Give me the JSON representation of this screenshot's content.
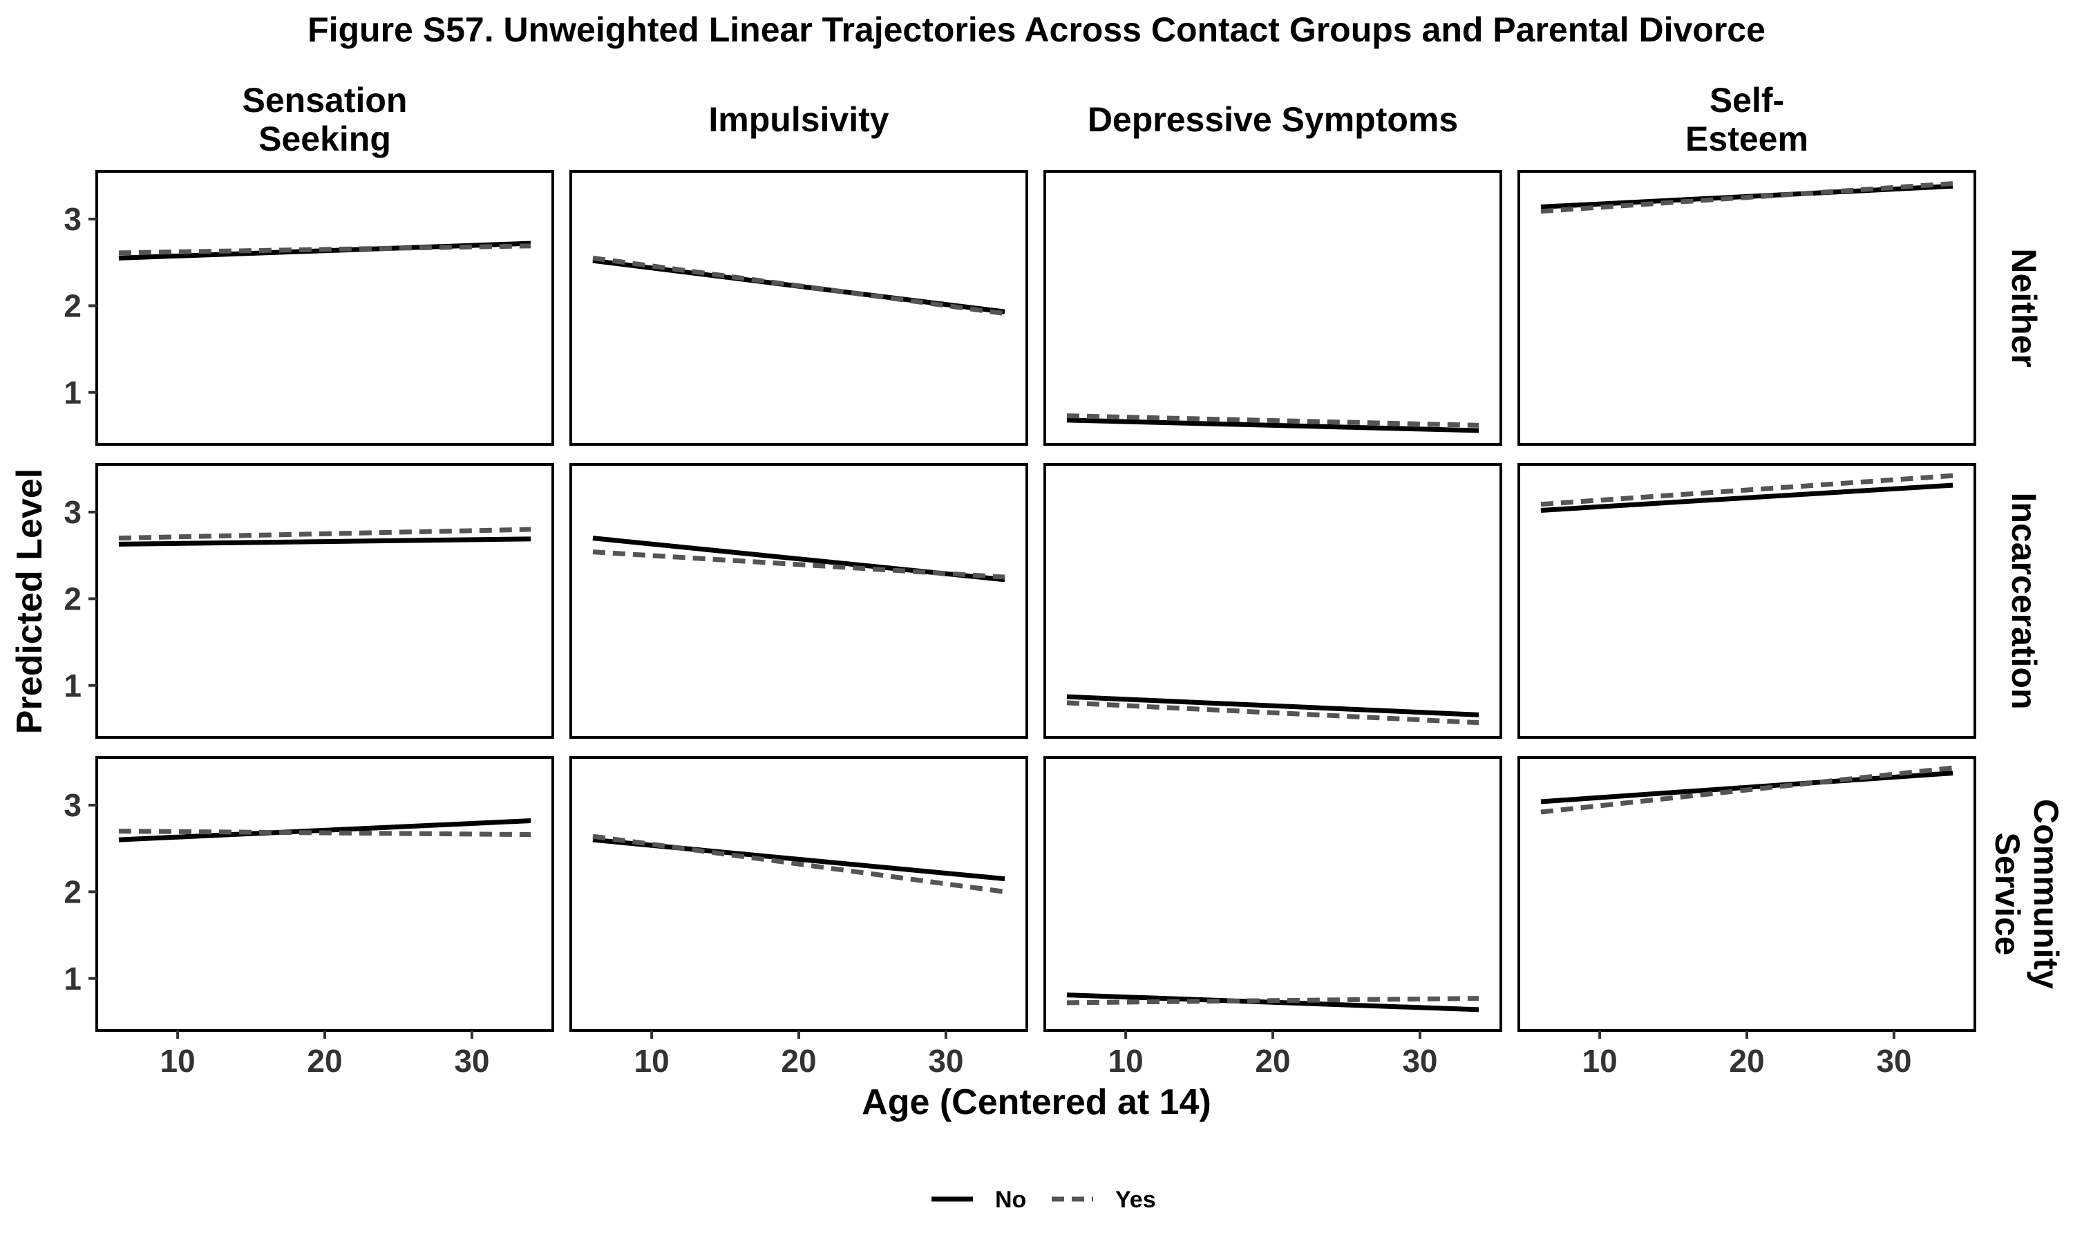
{
  "chart_data": {
    "type": "line",
    "title": "Figure S57. Unweighted Linear Trajectories Across Contact Groups and Parental Divorce",
    "xlabel": "Age (Centered at 14)",
    "ylabel": "Predicted Level",
    "xlim": [
      4.5,
      35.5
    ],
    "ylim": [
      0.4,
      3.55
    ],
    "x_ticks": [
      10,
      20,
      30
    ],
    "y_ticks": [
      1,
      2,
      3
    ],
    "x_tick_labels": [
      "10",
      "20",
      "30"
    ],
    "y_tick_labels": [
      "1",
      "2",
      "3"
    ],
    "grid": false,
    "legend": {
      "position": "bottom",
      "entries": [
        {
          "label": "No",
          "linetype": "solid",
          "color": "#000000"
        },
        {
          "label": "Yes",
          "linetype": "dashed",
          "color": "#555555"
        }
      ]
    },
    "columns": [
      {
        "key": "sensation",
        "label": "Sensation\nSeeking",
        "lines": [
          "Sensation",
          "Seeking"
        ]
      },
      {
        "key": "impulsivity",
        "label": "Impulsivity",
        "lines": [
          "Impulsivity"
        ]
      },
      {
        "key": "depressive",
        "label": "Depressive Symptoms",
        "lines": [
          "Depressive Symptoms"
        ]
      },
      {
        "key": "selfesteem",
        "label": "Self-\nEsteem",
        "lines": [
          "Self-",
          "Esteem"
        ]
      }
    ],
    "rows": [
      {
        "key": "neither",
        "label": "Neither",
        "lines": [
          "Neither"
        ]
      },
      {
        "key": "incarceration",
        "label": "Incarceration",
        "lines": [
          "Incarceration"
        ]
      },
      {
        "key": "community",
        "label": "Community\nService",
        "lines": [
          "Community",
          "Service"
        ]
      }
    ],
    "x_range": [
      6,
      34
    ],
    "panels": [
      {
        "row": "neither",
        "col": "sensation",
        "series": [
          {
            "name": "No",
            "values": [
              2.55,
              2.72
            ]
          },
          {
            "name": "Yes",
            "values": [
              2.61,
              2.69
            ]
          }
        ]
      },
      {
        "row": "neither",
        "col": "impulsivity",
        "series": [
          {
            "name": "No",
            "values": [
              2.52,
              1.93
            ]
          },
          {
            "name": "Yes",
            "values": [
              2.55,
              1.91
            ]
          }
        ]
      },
      {
        "row": "neither",
        "col": "depressive",
        "series": [
          {
            "name": "No",
            "values": [
              0.68,
              0.56
            ]
          },
          {
            "name": "Yes",
            "values": [
              0.73,
              0.62
            ]
          }
        ]
      },
      {
        "row": "neither",
        "col": "selfesteem",
        "series": [
          {
            "name": "No",
            "values": [
              3.14,
              3.38
            ]
          },
          {
            "name": "Yes",
            "values": [
              3.09,
              3.41
            ]
          }
        ]
      },
      {
        "row": "incarceration",
        "col": "sensation",
        "series": [
          {
            "name": "No",
            "values": [
              2.63,
              2.69
            ]
          },
          {
            "name": "Yes",
            "values": [
              2.7,
              2.8
            ]
          }
        ]
      },
      {
        "row": "incarceration",
        "col": "impulsivity",
        "series": [
          {
            "name": "No",
            "values": [
              2.7,
              2.22
            ]
          },
          {
            "name": "Yes",
            "values": [
              2.54,
              2.25
            ]
          }
        ]
      },
      {
        "row": "incarceration",
        "col": "depressive",
        "series": [
          {
            "name": "No",
            "values": [
              0.87,
              0.66
            ]
          },
          {
            "name": "Yes",
            "values": [
              0.8,
              0.57
            ]
          }
        ]
      },
      {
        "row": "incarceration",
        "col": "selfesteem",
        "series": [
          {
            "name": "No",
            "values": [
              3.02,
              3.31
            ]
          },
          {
            "name": "Yes",
            "values": [
              3.09,
              3.42
            ]
          }
        ]
      },
      {
        "row": "community",
        "col": "sensation",
        "series": [
          {
            "name": "No",
            "values": [
              2.6,
              2.82
            ]
          },
          {
            "name": "Yes",
            "values": [
              2.7,
              2.66
            ]
          }
        ]
      },
      {
        "row": "community",
        "col": "impulsivity",
        "series": [
          {
            "name": "No",
            "values": [
              2.6,
              2.15
            ]
          },
          {
            "name": "Yes",
            "values": [
              2.64,
              2.0
            ]
          }
        ]
      },
      {
        "row": "community",
        "col": "depressive",
        "series": [
          {
            "name": "No",
            "values": [
              0.81,
              0.64
            ]
          },
          {
            "name": "Yes",
            "values": [
              0.72,
              0.77
            ]
          }
        ]
      },
      {
        "row": "community",
        "col": "selfesteem",
        "series": [
          {
            "name": "No",
            "values": [
              3.04,
              3.37
            ]
          },
          {
            "name": "Yes",
            "values": [
              2.92,
              3.43
            ]
          }
        ]
      }
    ]
  }
}
